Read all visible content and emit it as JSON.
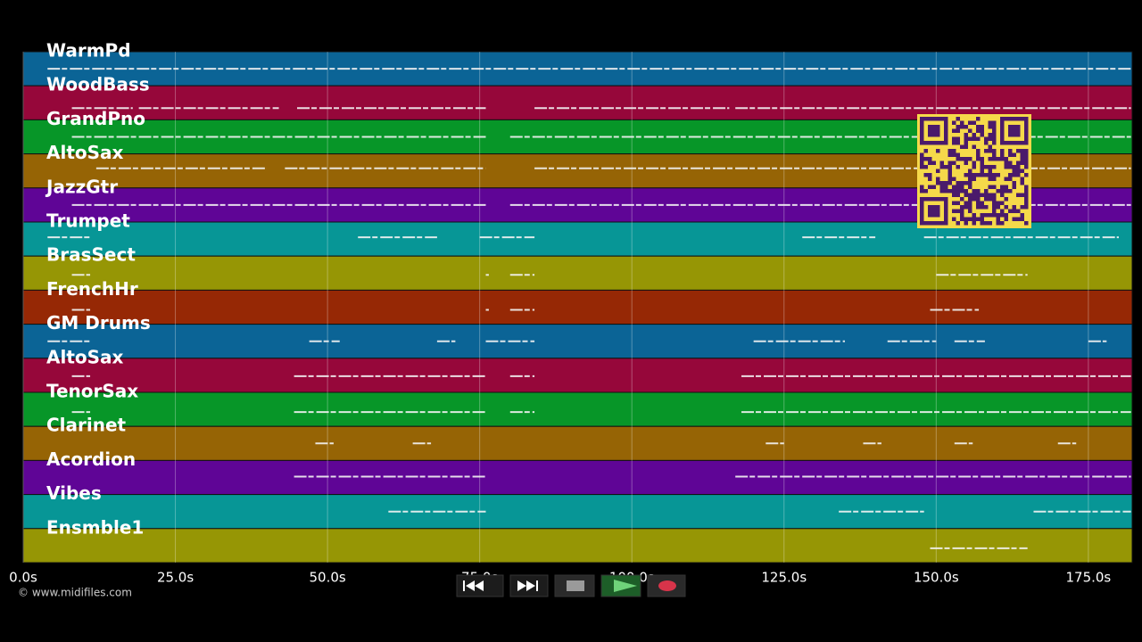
{
  "tracks": [
    {
      "name": "WarmPd",
      "color": "#0b6496",
      "notes": [
        [
          4,
          182
        ]
      ]
    },
    {
      "name": "WoodBass",
      "color": "#96073a",
      "notes": [
        [
          8,
          18
        ],
        [
          19,
          42
        ],
        [
          45,
          76
        ],
        [
          84,
          116
        ],
        [
          117,
          182
        ]
      ]
    },
    {
      "name": "GrandPno",
      "color": "#079628",
      "notes": [
        [
          8,
          76
        ],
        [
          80,
          182
        ]
      ]
    },
    {
      "name": "AltoSax",
      "color": "#966405",
      "notes": [
        [
          12,
          40
        ],
        [
          43,
          76
        ],
        [
          84,
          182
        ]
      ]
    },
    {
      "name": "JazzGtr",
      "color": "#5f0596",
      "notes": [
        [
          8,
          76
        ],
        [
          80,
          182
        ]
      ]
    },
    {
      "name": "Trumpet",
      "color": "#079696",
      "notes": [
        [
          4,
          11
        ],
        [
          55,
          68
        ],
        [
          75,
          84
        ],
        [
          128,
          140
        ],
        [
          148,
          180
        ]
      ]
    },
    {
      "name": "BrasSect",
      "color": "#969605",
      "notes": [
        [
          8,
          11
        ],
        [
          76,
          76.5
        ],
        [
          80,
          84
        ],
        [
          150,
          165
        ]
      ]
    },
    {
      "name": "FrenchHr",
      "color": "#962805",
      "notes": [
        [
          8,
          11
        ],
        [
          76,
          76.5
        ],
        [
          80,
          84
        ],
        [
          149,
          157
        ]
      ]
    },
    {
      "name": "GM Drums",
      "color": "#0b6496",
      "notes": [
        [
          4,
          11
        ],
        [
          47,
          52
        ],
        [
          68,
          71
        ],
        [
          76,
          84
        ],
        [
          120,
          135
        ],
        [
          142,
          150
        ],
        [
          153,
          158
        ],
        [
          175,
          178
        ]
      ]
    },
    {
      "name": "AltoSax",
      "color": "#96073a",
      "notes": [
        [
          8,
          11
        ],
        [
          44.5,
          76
        ],
        [
          80,
          84
        ],
        [
          118,
          182
        ]
      ]
    },
    {
      "name": "TenorSax",
      "color": "#079628",
      "notes": [
        [
          8,
          11
        ],
        [
          44.5,
          76
        ],
        [
          80,
          84
        ],
        [
          118,
          182
        ]
      ]
    },
    {
      "name": "Clarinet",
      "color": "#966405",
      "notes": [
        [
          48,
          51
        ],
        [
          64,
          67
        ],
        [
          122,
          125
        ],
        [
          138,
          141
        ],
        [
          153,
          156
        ],
        [
          170,
          173
        ]
      ]
    },
    {
      "name": "Acordion",
      "color": "#5f0596",
      "notes": [
        [
          44.5,
          76
        ],
        [
          117,
          182
        ]
      ]
    },
    {
      "name": "Vibes",
      "color": "#079696",
      "notes": [
        [
          60,
          76
        ],
        [
          134,
          148
        ],
        [
          166,
          182
        ]
      ]
    },
    {
      "name": "Ensmble1",
      "color": "#969605",
      "notes": [
        [
          149,
          165
        ]
      ]
    }
  ],
  "time_axis": {
    "xlim": [
      0,
      182.2
    ],
    "ticks": [
      {
        "value": 0,
        "label": "0.0s"
      },
      {
        "value": 25,
        "label": "25.0s"
      },
      {
        "value": 50,
        "label": "50.0s"
      },
      {
        "value": 75,
        "label": "75.0s"
      },
      {
        "value": 100,
        "label": "100.0s"
      },
      {
        "value": 125,
        "label": "125.0s"
      },
      {
        "value": 150,
        "label": "150.0s"
      },
      {
        "value": 175,
        "label": "175.0s"
      }
    ]
  },
  "copyright": "© www.midifiles.com"
}
